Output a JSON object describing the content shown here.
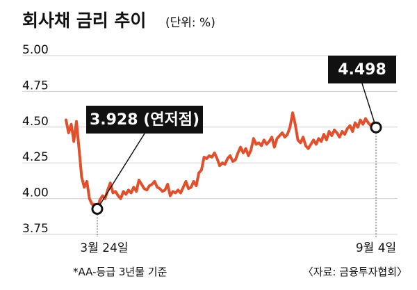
{
  "chart_data": {
    "type": "line",
    "title": "회사채 금리 추이",
    "unit_label": "(단위: %)",
    "ylim": [
      3.75,
      5.0
    ],
    "y_ticks": [
      "5.00",
      "4.75",
      "4.50",
      "4.25",
      "4.00",
      "3.75"
    ],
    "x_tick_labels": [
      "3월 24일",
      "9월 4일"
    ],
    "footnote": "*AA-등급 3년물 기준",
    "source": "〈자료: 금융투자협회〉",
    "colors": {
      "line": "#e0502c",
      "text": "#111111",
      "grid": "#cfcfcf",
      "callout_bg": "#111111",
      "callout_text": "#ffffff"
    },
    "annotations": {
      "low": {
        "value": 3.928,
        "label": "3.928 (연저점)"
      },
      "last": {
        "value": 4.498,
        "label": "4.498"
      }
    },
    "series": [
      {
        "values": [
          4.55,
          4.46,
          4.52,
          4.4,
          4.54,
          4.35,
          4.15,
          4.08,
          4.12,
          4.0,
          3.96,
          3.96,
          3.928,
          3.99,
          4.02,
          4.0,
          4.06,
          4.11,
          4.04,
          4.05,
          4.02,
          4.0,
          4.05,
          4.03,
          4.06,
          4.04,
          4.08,
          4.05,
          4.13,
          4.1,
          4.07,
          4.06,
          4.09,
          4.1,
          4.12,
          4.08,
          4.07,
          4.05,
          4.06,
          4.1,
          4.02,
          4.05,
          4.04,
          4.06,
          4.04,
          4.08,
          4.12,
          4.07,
          4.08,
          4.12,
          4.09,
          4.18,
          4.2,
          4.29,
          4.28,
          4.3,
          4.29,
          4.32,
          4.28,
          4.23,
          4.25,
          4.24,
          4.28,
          4.3,
          4.26,
          4.27,
          4.32,
          4.36,
          4.32,
          4.35,
          4.3,
          4.34,
          4.42,
          4.38,
          4.39,
          4.37,
          4.41,
          4.38,
          4.4,
          4.43,
          4.36,
          4.42,
          4.44,
          4.46,
          4.43,
          4.45,
          4.5,
          4.6,
          4.52,
          4.41,
          4.39,
          4.43,
          4.37,
          4.35,
          4.38,
          4.41,
          4.38,
          4.42,
          4.4,
          4.45,
          4.41,
          4.47,
          4.44,
          4.48,
          4.46,
          4.43,
          4.47,
          4.45,
          4.49,
          4.51,
          4.47,
          4.53,
          4.5,
          4.55,
          4.52,
          4.56,
          4.53,
          4.51,
          4.53,
          4.498
        ]
      }
    ]
  }
}
